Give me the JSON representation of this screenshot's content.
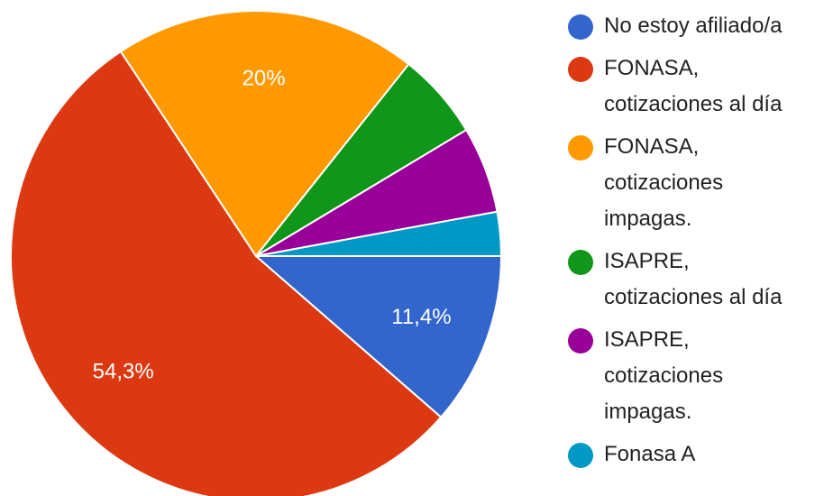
{
  "chart_data": {
    "type": "pie",
    "categories": [
      "No estoy afiliado/a",
      "FONASA, cotizaciones al día",
      "FONASA, cotizaciones impagas.",
      "ISAPRE, cotizaciones al día",
      "ISAPRE, cotizaciones impagas.",
      "Fonasa A"
    ],
    "values": [
      11.4,
      54.3,
      20,
      5.7,
      5.7,
      2.9
    ],
    "value_labels": [
      "11,4%",
      "54,3%",
      "20%",
      null,
      null,
      null
    ],
    "colors": [
      "#3366cc",
      "#dc3912",
      "#ff9900",
      "#109618",
      "#990099",
      "#0099c6"
    ],
    "legend": "right"
  }
}
